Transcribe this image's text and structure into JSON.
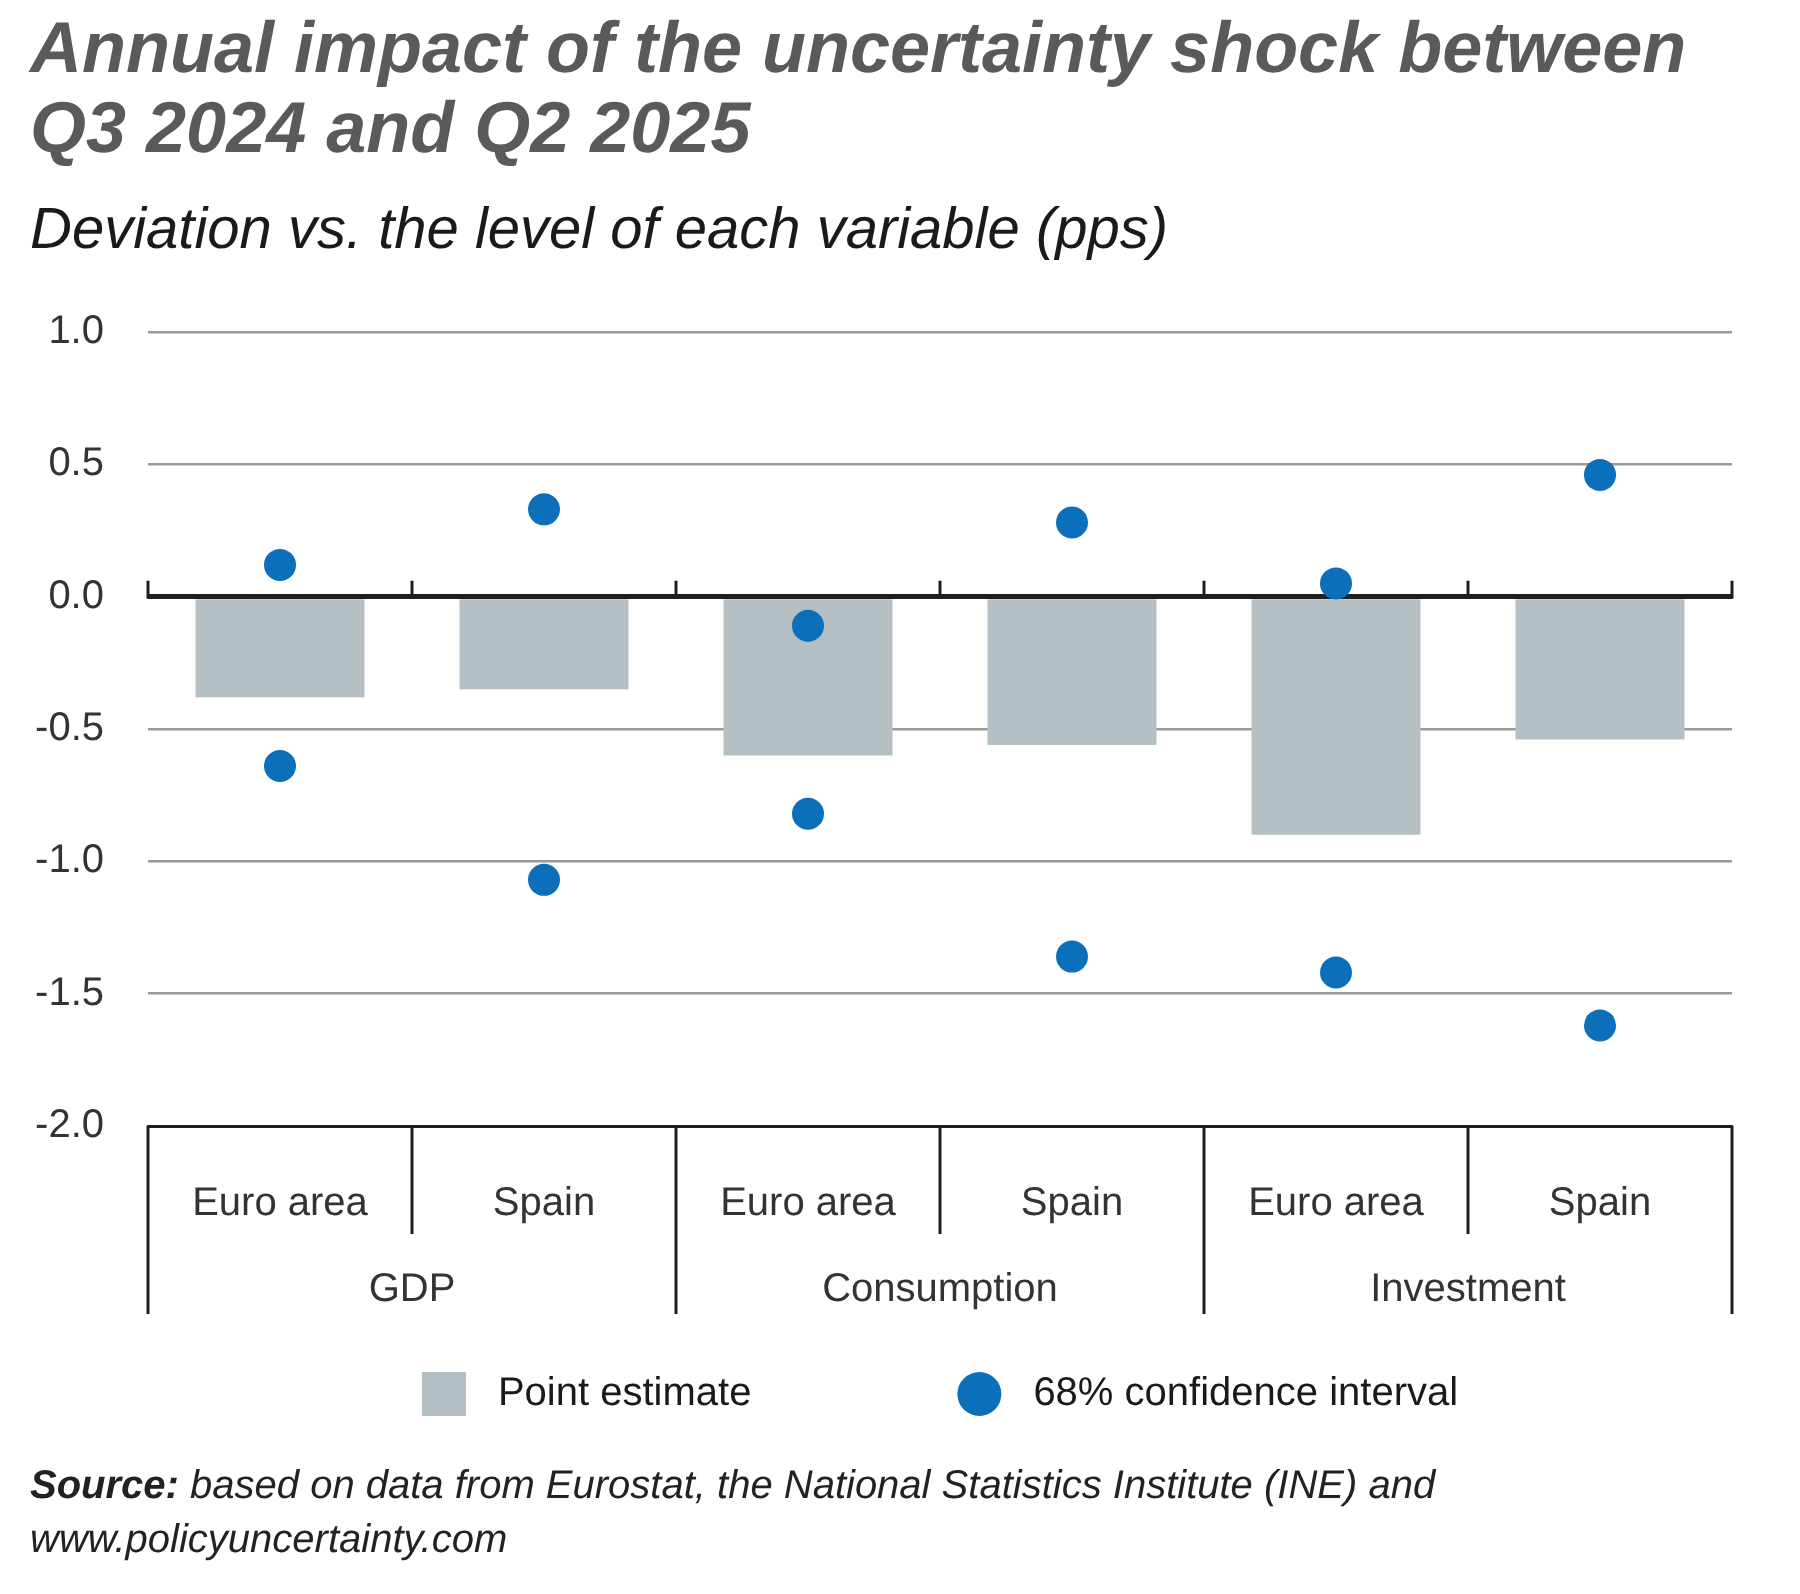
{
  "chart_data": {
    "type": "bar",
    "title": "Annual impact of the uncertainty shock between Q3 2024 and Q2 2025",
    "subtitle": "Deviation vs. the level of each variable (pps)",
    "categories": [
      "Euro area",
      "Spain",
      "Euro area",
      "Spain",
      "Euro area",
      "Spain"
    ],
    "series": [
      {
        "name": "Point estimate",
        "color": "#b3bfc2",
        "values": [
          -0.38,
          -0.35,
          -0.6,
          -0.56,
          -0.9,
          -0.54
        ]
      },
      {
        "name": "68% confidence interval",
        "type": "scatter",
        "color": "#0b6fba",
        "values": [
          0.12,
          0.33,
          -0.11,
          0.28,
          0.05,
          0.46
        ]
      },
      {
        "type": "scatter",
        "color": "#0b6fba",
        "values": [
          -0.64,
          -1.07,
          -0.82,
          -1.36,
          -1.42,
          -1.62
        ]
      }
    ],
    "ylim": [
      -2,
      1
    ],
    "yticks": [
      {
        "value": 1,
        "label": "1.0"
      },
      0.5,
      {
        "value": 0,
        "label": "0.0"
      },
      -0.5,
      {
        "value": -1,
        "label": "-1.0"
      },
      -1.5,
      {
        "value": -2,
        "label": "-2.0"
      }
    ],
    "grid": "y",
    "legend": "bottom",
    "marker": "circle",
    "annotations": [
      "GDP",
      "Consumption",
      "Investment",
      "Source: based on data from Eurostat, the National Statistics Institute (INE) and www.policyuncertainty.com"
    ]
  }
}
